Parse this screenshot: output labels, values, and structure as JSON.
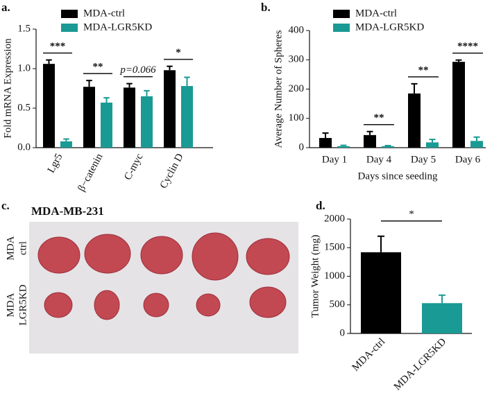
{
  "chart_data": [
    {
      "type": "bar",
      "panel": "a.",
      "ylabel": "Fold mRNA Expression",
      "categories": [
        "Lgr5",
        "β−catenin",
        "C-myc",
        "Cyclin D"
      ],
      "series": [
        {
          "name": "MDA-ctrl",
          "color": "#000000",
          "values": [
            1.06,
            0.77,
            0.76,
            0.98
          ],
          "errors": [
            0.05,
            0.08,
            0.05,
            0.05
          ]
        },
        {
          "name": "MDA-LGR5KD",
          "color": "#1a9a94",
          "values": [
            0.08,
            0.57,
            0.65,
            0.78
          ],
          "errors": [
            0.03,
            0.06,
            0.07,
            0.11
          ]
        }
      ],
      "annotations": [
        "***",
        "**",
        "p=0.066",
        "*"
      ],
      "ylim": [
        0,
        1.5
      ],
      "yticks": [
        {
          "value": 0,
          "label": "0.0"
        },
        0.5,
        {
          "value": 1,
          "label": "1.0"
        },
        1.5
      ]
    },
    {
      "type": "bar",
      "panel": "b.",
      "ylabel": "Average Number of Spheres",
      "xlabel": "Days since seeding",
      "categories": [
        "Day 1",
        "Day 4",
        "Day 5",
        "Day 6"
      ],
      "series": [
        {
          "name": "MDA-ctrl",
          "color": "#000000",
          "values": [
            33,
            43,
            185,
            293
          ],
          "errors": [
            17,
            12,
            33,
            6
          ]
        },
        {
          "name": "MDA-LGR5KD",
          "color": "#1a9a94",
          "values": [
            5,
            5,
            18,
            23
          ],
          "errors": [
            3,
            2,
            10,
            13
          ]
        }
      ],
      "annotations": [
        null,
        "**",
        "**",
        "****"
      ],
      "ylim": [
        0,
        400
      ],
      "yticks": [
        0,
        100,
        200,
        300,
        400
      ]
    },
    {
      "type": "bar",
      "panel": "d.",
      "ylabel": "Tumor Weight (mg)",
      "categories": [
        "MDA-ctrl",
        "MDA-LGR5KD"
      ],
      "values": [
        1420,
        530
      ],
      "errors": [
        280,
        140
      ],
      "colors": [
        "#000000",
        "#1a9a94"
      ],
      "annotation": "*",
      "ylim": [
        0,
        2000
      ],
      "yticks": [
        0,
        500,
        1000,
        1500,
        2000
      ]
    }
  ],
  "photo": {
    "panel": "c.",
    "title": "MDA-MB-231",
    "row_labels": [
      [
        "MDA",
        "ctrl"
      ],
      [
        "MDA",
        "LGR5KD"
      ]
    ]
  }
}
